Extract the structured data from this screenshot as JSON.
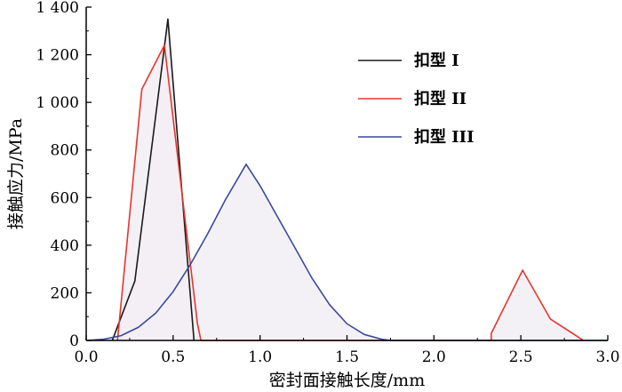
{
  "chart_data": {
    "type": "line",
    "xlabel": "密封面接触长度/mm",
    "ylabel": "接触应力/MPa",
    "xlim": [
      0,
      3.0
    ],
    "ylim": [
      0,
      1400
    ],
    "xticks": [
      "0.0",
      "0.5",
      "1.0",
      "1.5",
      "2.0",
      "2.5",
      "3.0"
    ],
    "yticks": [
      "0",
      "200",
      "400",
      "600",
      "800",
      "1 000",
      "1 200",
      "1 400"
    ],
    "legend_position": "top-right",
    "grid": false,
    "series": [
      {
        "name": "扣型 I",
        "color": "#1a1a1a",
        "x": [
          0.15,
          0.28,
          0.47,
          0.62,
          0.62
        ],
        "y": [
          0,
          250,
          1350,
          0,
          0
        ]
      },
      {
        "name": "扣型 II",
        "color": "#e8352e",
        "x": [
          0.18,
          0.32,
          0.45,
          0.64,
          0.66,
          2.33,
          2.33,
          2.51,
          2.67,
          2.86
        ],
        "y": [
          0,
          1055,
          1240,
          70,
          0,
          0,
          30,
          295,
          90,
          0
        ]
      },
      {
        "name": "扣型 III",
        "color": "#3a4a9c",
        "x": [
          0.0,
          0.1,
          0.2,
          0.3,
          0.4,
          0.5,
          0.6,
          0.7,
          0.8,
          0.92,
          1.0,
          1.1,
          1.2,
          1.3,
          1.4,
          1.5,
          1.6,
          1.7,
          1.75,
          1.8,
          3.0
        ],
        "y": [
          0,
          5,
          20,
          55,
          115,
          205,
          320,
          450,
          590,
          740,
          650,
          520,
          390,
          260,
          150,
          70,
          25,
          5,
          0,
          0,
          0
        ]
      }
    ]
  }
}
